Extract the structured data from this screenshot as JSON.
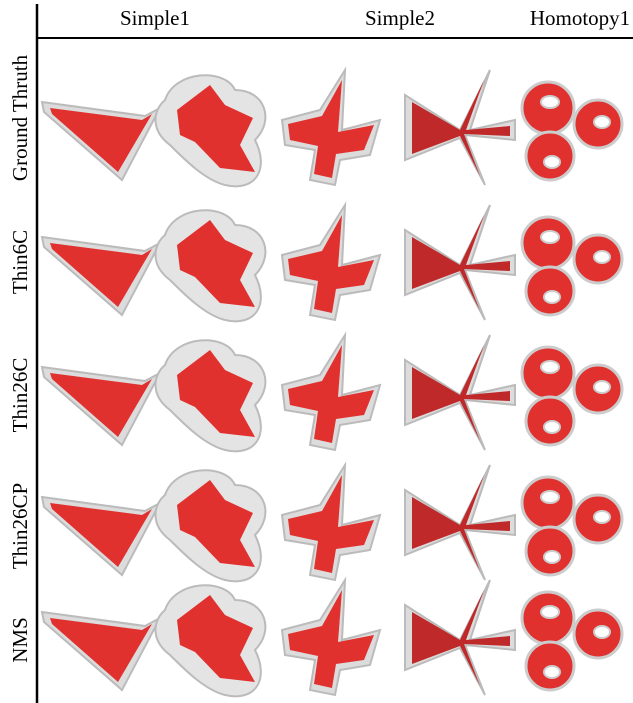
{
  "columns": [
    "Simple1",
    "Simple2",
    "Homotopy1"
  ],
  "rows": [
    "Ground Thruth",
    "Thin6C",
    "Thin26C",
    "Thin26CP",
    "NMS"
  ]
}
